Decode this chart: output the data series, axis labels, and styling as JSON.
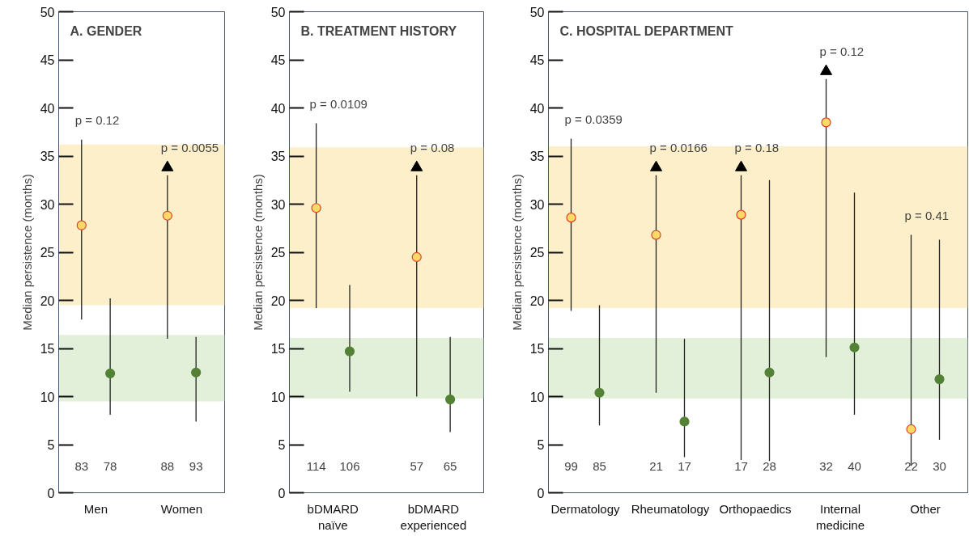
{
  "chart_data": [
    {
      "type": "scatter",
      "title": "A. GENDER",
      "ylabel": "Median persistence (months)",
      "categories": [
        "Men",
        "Women"
      ],
      "ylim": [
        0,
        50
      ],
      "yticks": [
        0,
        5,
        10,
        15,
        20,
        25,
        30,
        35,
        40,
        45,
        50
      ],
      "grid": false,
      "marker": "circle",
      "bands": [
        {
          "axis": "y",
          "from": 19.5,
          "to": 36.2,
          "color": "#fdefc9"
        },
        {
          "axis": "y",
          "from": 9.5,
          "to": 16.4,
          "color": "#e2efd9"
        }
      ],
      "series": [
        {
          "color": "#ffd966",
          "values": [
            27.8,
            28.8
          ],
          "errors": [
            [
              18,
              36.7
            ],
            [
              16,
              33
            ]
          ]
        },
        {
          "color": "#538135",
          "values": [
            12.4,
            12.5
          ],
          "errors": [
            [
              8.1,
              20.2
            ],
            [
              7.4,
              16.2
            ]
          ]
        },
        {
          "color": "#000000",
          "marker": "triangle",
          "values": [
            null,
            33.8
          ]
        }
      ],
      "annotations": [
        "p = 0.12",
        "p = 0.0055",
        "83",
        "78",
        "88",
        "93"
      ]
    },
    {
      "type": "scatter",
      "title": "B. TREATMENT HISTORY",
      "ylabel": "Median persistence (months)",
      "categories": [
        "bDMARD\nnaïve",
        "bDMARD\nexperienced"
      ],
      "ylim": [
        0,
        50
      ],
      "yticks": [
        0,
        5,
        10,
        15,
        20,
        25,
        30,
        35,
        40,
        45,
        50
      ],
      "grid": false,
      "marker": "circle",
      "bands": [
        {
          "axis": "y",
          "from": 19.2,
          "to": 35.9,
          "color": "#fdefc9"
        },
        {
          "axis": "y",
          "from": 9.8,
          "to": 16.1,
          "color": "#e2efd9"
        }
      ],
      "series": [
        {
          "color": "#ffd966",
          "values": [
            29.6,
            24.5
          ],
          "errors": [
            [
              19.2,
              38.4
            ],
            [
              10,
              33
            ]
          ]
        },
        {
          "color": "#538135",
          "values": [
            14.7,
            9.7
          ],
          "errors": [
            [
              10.5,
              21.6
            ],
            [
              6.3,
              16.2
            ]
          ]
        },
        {
          "color": "#000000",
          "marker": "triangle",
          "values": [
            null,
            33.8
          ]
        }
      ],
      "annotations": [
        "p = 0.0109",
        "p = 0.08",
        "114",
        "106",
        "57",
        "65"
      ]
    },
    {
      "type": "scatter",
      "title": "C. HOSPITAL DEPARTMENT",
      "ylabel": "Median persistence (months)",
      "categories": [
        "Dermatology",
        "Rheumatology",
        "Orthopaedics",
        "Internal\nmedicine",
        "Other"
      ],
      "ylim": [
        0,
        50
      ],
      "yticks": [
        0,
        5,
        10,
        15,
        20,
        25,
        30,
        35,
        40,
        45,
        50
      ],
      "grid": false,
      "marker": "circle",
      "bands": [
        {
          "axis": "y",
          "from": 19.2,
          "to": 36,
          "color": "#fdefc9"
        },
        {
          "axis": "y",
          "from": 9.8,
          "to": 16.1,
          "color": "#e2efd9"
        }
      ],
      "series": [
        {
          "color": "#ffd966",
          "values": [
            28.6,
            26.8,
            28.9,
            38.5,
            6.6
          ],
          "errors": [
            [
              18.9,
              36.8
            ],
            [
              10.4,
              33
            ],
            [
              3.4,
              33
            ],
            [
              14.1,
              43
            ],
            [
              2.8,
              26.8
            ]
          ]
        },
        {
          "color": "#538135",
          "values": [
            10.4,
            7.4,
            12.5,
            15.1,
            11.8
          ],
          "errors": [
            [
              7,
              19.5
            ],
            [
              3.7,
              16
            ],
            [
              3.3,
              32.5
            ],
            [
              8.1,
              31.2
            ],
            [
              5.5,
              26.3
            ]
          ]
        },
        {
          "color": "#000000",
          "marker": "triangle",
          "values": [
            null,
            33.8,
            33.8,
            43.8,
            null
          ]
        }
      ],
      "annotations": [
        "p = 0.0359",
        "p = 0.0166",
        "p = 0.18",
        "p = 0.12",
        "p = 0.41",
        "99",
        "85",
        "21",
        "17",
        "17",
        "28",
        "32",
        "40",
        "22",
        "30"
      ]
    }
  ]
}
